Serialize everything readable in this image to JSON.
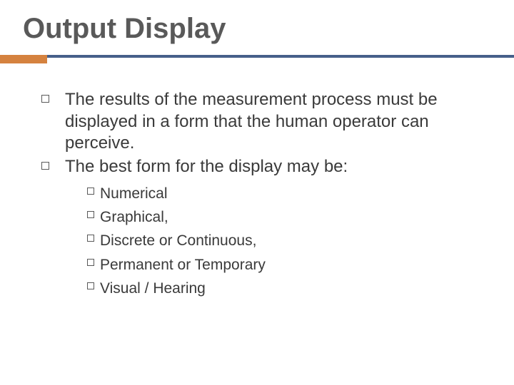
{
  "slide": {
    "title": "Output Display",
    "title_color": "#595959",
    "title_fontsize": 40,
    "accent_color": "#d5823f",
    "rule_color": "#465f8a",
    "background_color": "#ffffff",
    "body_color": "#3a3a3a",
    "bullets": [
      {
        "text": "The results of the measurement process must be displayed in a form that the human operator can perceive."
      },
      {
        "text": "The best form for the display may be:"
      }
    ],
    "sub_bullets": [
      {
        "text": "Numerical"
      },
      {
        "text": "Graphical,"
      },
      {
        "text": "Discrete or Continuous,"
      },
      {
        "text": "Permanent or Temporary"
      },
      {
        "text": "Visual / Hearing"
      }
    ],
    "bullet_fontsize": 24,
    "sub_bullet_fontsize": 21
  }
}
